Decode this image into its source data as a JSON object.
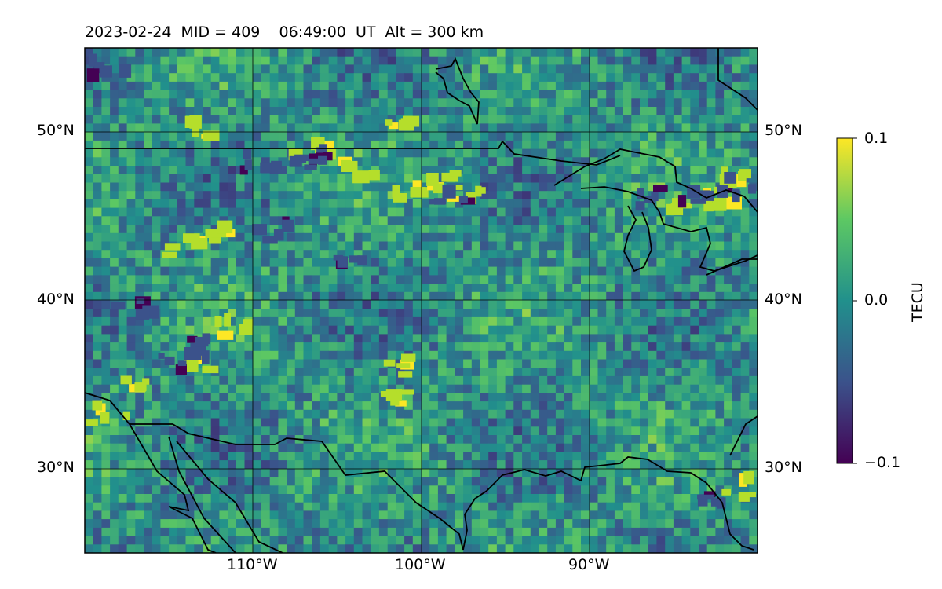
{
  "title": "2023-02-24  MID = 409    06:49:00  UT  Alt = 300 km",
  "map": {
    "projection": "PlateCarree",
    "extent": {
      "lon_min": -120,
      "lon_max": -80,
      "lat_min": 25,
      "lat_max": 55
    },
    "lat_ticks": [
      {
        "value": 50,
        "label": "50°N"
      },
      {
        "value": 40,
        "label": "40°N"
      },
      {
        "value": 30,
        "label": "30°N"
      }
    ],
    "lon_ticks": [
      {
        "value": -110,
        "label": "110°W"
      },
      {
        "value": -100,
        "label": "100°W"
      },
      {
        "value": -90,
        "label": "90°W"
      }
    ],
    "gridlines": true,
    "coastlines": true,
    "field": "differential TEC, mostly near zero with scattered positive and negative patches, strongest along ~45–49°N",
    "hotspots_positive": [
      {
        "lon": -106.5,
        "lat": 48.8
      },
      {
        "lon": -103.5,
        "lat": 47.9
      },
      {
        "lon": -100.5,
        "lat": 46.6
      },
      {
        "lon": -99.0,
        "lat": 47.2
      },
      {
        "lon": -97.5,
        "lat": 46.5
      },
      {
        "lon": -84.0,
        "lat": 45.8
      },
      {
        "lon": -82.0,
        "lat": 46.0
      },
      {
        "lon": -118.5,
        "lat": 33.3
      },
      {
        "lon": -117.0,
        "lat": 34.8
      },
      {
        "lon": -113.5,
        "lat": 36.2
      },
      {
        "lon": -111.0,
        "lat": 38.5
      },
      {
        "lon": -114.0,
        "lat": 43.2
      },
      {
        "lon": -112.0,
        "lat": 43.9
      },
      {
        "lon": -101.0,
        "lat": 34.3
      },
      {
        "lon": -101.5,
        "lat": 36.0
      },
      {
        "lon": -81.0,
        "lat": 28.9
      },
      {
        "lon": -81.5,
        "lat": 47.3
      },
      {
        "lon": -113.0,
        "lat": 50.3
      },
      {
        "lon": -101.0,
        "lat": 50.8
      }
    ],
    "hotspots_negative": [
      {
        "lon": -107.0,
        "lat": 48.5
      },
      {
        "lon": -105.5,
        "lat": 48.8
      },
      {
        "lon": -109.5,
        "lat": 48.2
      },
      {
        "lon": -98.0,
        "lat": 46.2
      },
      {
        "lon": -86.5,
        "lat": 46.2
      },
      {
        "lon": -83.5,
        "lat": 46.0
      },
      {
        "lon": -81.0,
        "lat": 46.8
      },
      {
        "lon": -113.0,
        "lat": 37.2
      },
      {
        "lon": -114.5,
        "lat": 36.3
      },
      {
        "lon": -117.0,
        "lat": 39.7
      },
      {
        "lon": -109.0,
        "lat": 44.2
      },
      {
        "lon": -104.0,
        "lat": 42.8
      },
      {
        "lon": -118.5,
        "lat": 53.7
      },
      {
        "lon": -82.5,
        "lat": 28.4
      }
    ]
  },
  "colorbar": {
    "label": "TECU",
    "min": -0.1,
    "max": 0.1,
    "ticks": [
      "0.1",
      "0.0",
      "−0.1"
    ],
    "colormap": "viridis",
    "colors": [
      "#440154",
      "#3b528b",
      "#21908c",
      "#5dc863",
      "#fde725"
    ]
  }
}
